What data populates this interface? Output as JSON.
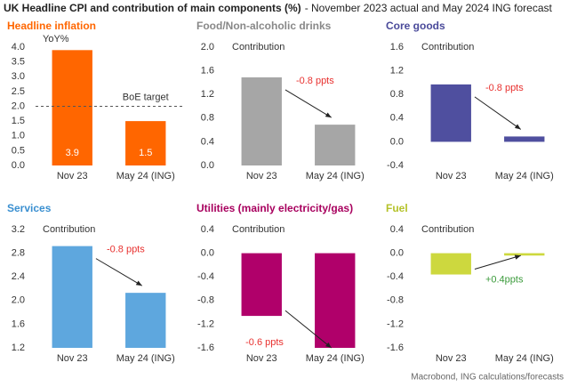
{
  "title": "UK Headline CPI and contribution of main components (%)",
  "subtitle": "- November 2023 actual and May 2024 ING forecast",
  "source": "Macrobond, ING calculations/forecasts",
  "chart_data": [
    {
      "type": "bar",
      "title": "Headline inflation",
      "title_color": "#ff6600",
      "y_label": "YoY%",
      "categories": [
        "Nov 23",
        "May 24 (ING)"
      ],
      "values": [
        3.9,
        1.5
      ],
      "color": "#ff6600",
      "show_values": true,
      "ylim": [
        0,
        4
      ],
      "yticks": [
        {
          "value": 0,
          "label": "0.0"
        },
        0.5,
        {
          "value": 1,
          "label": "1.0"
        },
        1.5,
        {
          "value": 2,
          "label": "2.0"
        },
        2.5,
        {
          "value": 3,
          "label": "3.0"
        },
        3.5,
        {
          "value": 4,
          "label": "4.0"
        }
      ],
      "reference_line": {
        "value": 2,
        "label": "BoE target"
      }
    },
    {
      "type": "bar",
      "title": "Food/Non-alcoholic drinks",
      "title_color": "#888888",
      "y_label": "Contribution",
      "categories": [
        "Nov 23",
        "May 24 (ING)"
      ],
      "values": [
        1.49,
        0.69
      ],
      "color": "#a6a6a6",
      "ylim": [
        0,
        2
      ],
      "yticks": [
        {
          "value": 0,
          "label": "0.0"
        },
        0.4,
        0.8,
        1.2,
        1.6,
        {
          "value": 2,
          "label": "2.0"
        }
      ],
      "annotation": "-0.8 ppts",
      "annotation_color": "#e8312f"
    },
    {
      "type": "bar",
      "title": "Core goods",
      "title_color": "#4a4a9a",
      "y_label": "Contribution",
      "categories": [
        "Nov 23",
        "May 24 (ING)"
      ],
      "values": [
        0.97,
        0.09
      ],
      "color": "#4f4f9f",
      "ylim": [
        -0.4,
        1.6
      ],
      "yticks": [
        -0.4,
        {
          "value": 0,
          "label": "0.0"
        },
        0.4,
        0.8,
        1.2,
        1.6
      ],
      "annotation": "-0.8 ppts",
      "annotation_color": "#e8312f"
    },
    {
      "type": "bar",
      "title": "Services",
      "title_color": "#3a8fd0",
      "y_label": "Contribution",
      "categories": [
        "Nov 23",
        "May 24 (ING)"
      ],
      "values": [
        2.92,
        2.13
      ],
      "color": "#5ea7de",
      "ylim": [
        1.2,
        3.2
      ],
      "yticks": [
        1.2,
        1.6,
        {
          "value": 2,
          "label": "2.0"
        },
        2.4,
        2.8,
        3.2
      ],
      "annotation": "-0.8 ppts",
      "annotation_color": "#e8312f"
    },
    {
      "type": "bar",
      "title": "Utilities (mainly electricity/gas)",
      "title_color": "#a8005e",
      "y_label": "Contribution",
      "categories": [
        "Nov 23",
        "May 24 (ING)"
      ],
      "values": [
        -1.06,
        -1.6
      ],
      "color": "#b0006a",
      "ylim": [
        -1.6,
        0.4
      ],
      "yticks": [
        -1.6,
        -1.2,
        -0.8,
        -0.4,
        {
          "value": 0,
          "label": "0.0"
        },
        0.4
      ],
      "annotation": "-0.6 ppts",
      "annotation_color": "#e8312f"
    },
    {
      "type": "bar",
      "title": "Fuel",
      "title_color": "#b5c22a",
      "y_label": "Contribution",
      "categories": [
        "Nov 23",
        "May 24 (ING)"
      ],
      "values": [
        -0.36,
        -0.04
      ],
      "color": "#cdd83e",
      "ylim": [
        -1.6,
        0.4
      ],
      "yticks": [
        -1.6,
        -1.2,
        -0.8,
        -0.4,
        {
          "value": 0,
          "label": "0.0"
        },
        0.4
      ],
      "annotation": "+0.4ppts",
      "annotation_color": "#3a9a3a"
    }
  ]
}
